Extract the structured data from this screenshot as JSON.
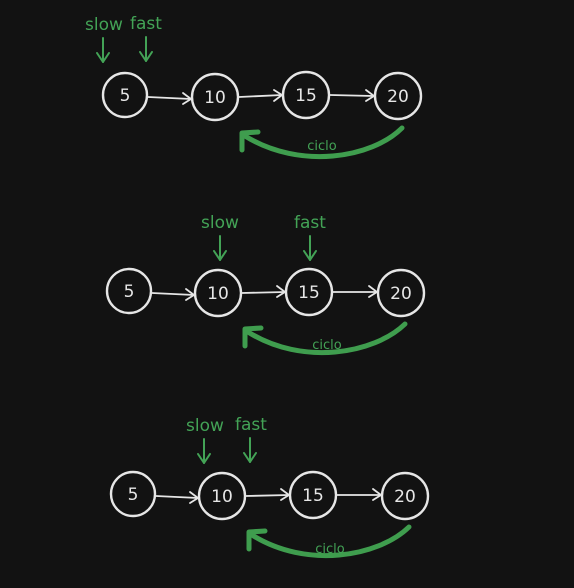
{
  "colors": {
    "background": "#121212",
    "node_stroke": "#e6e6e6",
    "accent_green": "#43a356"
  },
  "pointer_names": {
    "slow": "slow",
    "fast": "fast"
  },
  "cycle_label": "ciclo",
  "panels": [
    {
      "nodes": [
        "5",
        "10",
        "15",
        "20"
      ],
      "slow_at": 0,
      "fast_at": 0
    },
    {
      "nodes": [
        "5",
        "10",
        "15",
        "20"
      ],
      "slow_at": 1,
      "fast_at": 2
    },
    {
      "nodes": [
        "5",
        "10",
        "15",
        "20"
      ],
      "slow_at": 1,
      "fast_at": 1
    }
  ]
}
